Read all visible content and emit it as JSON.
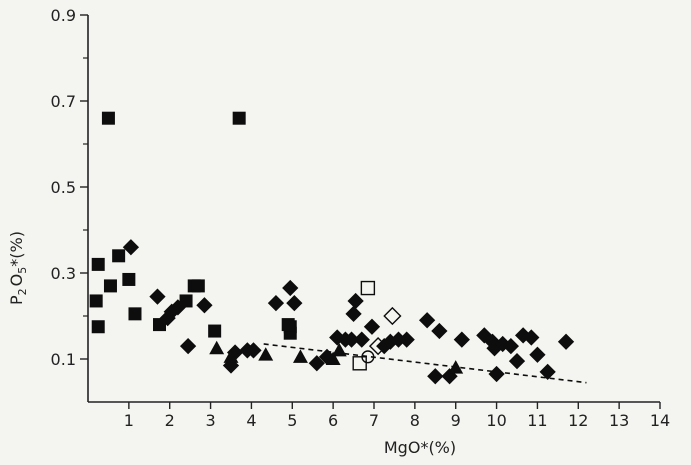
{
  "chart_data": {
    "type": "scatter",
    "title": "",
    "xlabel": {
      "main": "MgO",
      "suffix": "*(%)"
    },
    "ylabel": {
      "p": "P",
      "p_sub": "2",
      "o": "O",
      "o_sub": "5",
      "suffix": "*(%)"
    },
    "xlim": [
      0,
      14
    ],
    "ylim": [
      0,
      0.9
    ],
    "x_ticks": [
      1,
      2,
      3,
      4,
      5,
      6,
      7,
      8,
      9,
      10,
      11,
      12,
      13,
      14
    ],
    "y_ticks": [
      0.1,
      0.3,
      0.5,
      0.7,
      0.9
    ],
    "y_minor_ticks": [
      0.2,
      0.4,
      0.6,
      0.8
    ],
    "grid": false,
    "colors": {
      "marker": "#0d0d0d",
      "axis": "#222222",
      "background": "#f4f5f0"
    },
    "series": [
      {
        "marker": "filled-square",
        "points": [
          [
            0.25,
            0.32
          ],
          [
            0.2,
            0.235
          ],
          [
            0.25,
            0.175
          ],
          [
            0.5,
            0.66
          ],
          [
            0.55,
            0.27
          ],
          [
            0.75,
            0.34
          ],
          [
            1.0,
            0.285
          ],
          [
            1.15,
            0.205
          ],
          [
            1.75,
            0.18
          ],
          [
            2.6,
            0.27
          ],
          [
            2.7,
            0.27
          ],
          [
            2.4,
            0.235
          ],
          [
            3.1,
            0.165
          ],
          [
            3.7,
            0.66
          ],
          [
            4.95,
            0.175
          ],
          [
            4.95,
            0.16
          ],
          [
            4.9,
            0.18
          ]
        ]
      },
      {
        "marker": "filled-diamond",
        "points": [
          [
            1.05,
            0.36
          ],
          [
            1.7,
            0.245
          ],
          [
            1.95,
            0.195
          ],
          [
            2.05,
            0.21
          ],
          [
            2.2,
            0.22
          ],
          [
            2.45,
            0.13
          ],
          [
            2.85,
            0.225
          ],
          [
            3.5,
            0.085
          ],
          [
            3.6,
            0.115
          ],
          [
            3.9,
            0.12
          ],
          [
            4.05,
            0.12
          ],
          [
            4.6,
            0.23
          ],
          [
            4.95,
            0.265
          ],
          [
            5.05,
            0.23
          ],
          [
            5.6,
            0.09
          ],
          [
            5.85,
            0.105
          ],
          [
            6.1,
            0.15
          ],
          [
            6.3,
            0.145
          ],
          [
            6.45,
            0.145
          ],
          [
            6.55,
            0.235
          ],
          [
            6.5,
            0.205
          ],
          [
            6.7,
            0.145
          ],
          [
            6.95,
            0.175
          ],
          [
            7.25,
            0.13
          ],
          [
            7.4,
            0.14
          ],
          [
            7.6,
            0.145
          ],
          [
            7.8,
            0.145
          ],
          [
            8.3,
            0.19
          ],
          [
            8.5,
            0.06
          ],
          [
            8.6,
            0.165
          ],
          [
            8.85,
            0.06
          ],
          [
            9.15,
            0.145
          ],
          [
            9.7,
            0.155
          ],
          [
            9.9,
            0.14
          ],
          [
            9.95,
            0.125
          ],
          [
            10.0,
            0.065
          ],
          [
            10.15,
            0.135
          ],
          [
            10.35,
            0.13
          ],
          [
            10.5,
            0.095
          ],
          [
            10.65,
            0.155
          ],
          [
            10.85,
            0.15
          ],
          [
            11.0,
            0.11
          ],
          [
            11.25,
            0.07
          ],
          [
            11.7,
            0.14
          ]
        ]
      },
      {
        "marker": "filled-triangle",
        "points": [
          [
            3.15,
            0.125
          ],
          [
            3.5,
            0.105
          ],
          [
            4.35,
            0.11
          ],
          [
            5.2,
            0.105
          ],
          [
            6.0,
            0.1
          ],
          [
            6.15,
            0.12
          ],
          [
            9.0,
            0.08
          ]
        ]
      },
      {
        "marker": "open-square",
        "points": [
          [
            6.65,
            0.09
          ],
          [
            6.85,
            0.265
          ]
        ]
      },
      {
        "marker": "open-diamond",
        "points": [
          [
            7.1,
            0.13
          ],
          [
            7.45,
            0.2
          ]
        ]
      },
      {
        "marker": "open-circle",
        "points": [
          [
            6.85,
            0.105
          ]
        ]
      }
    ],
    "trend_line": {
      "style": "dashed",
      "points": [
        [
          4.3,
          0.135
        ],
        [
          12.2,
          0.045
        ]
      ]
    }
  }
}
